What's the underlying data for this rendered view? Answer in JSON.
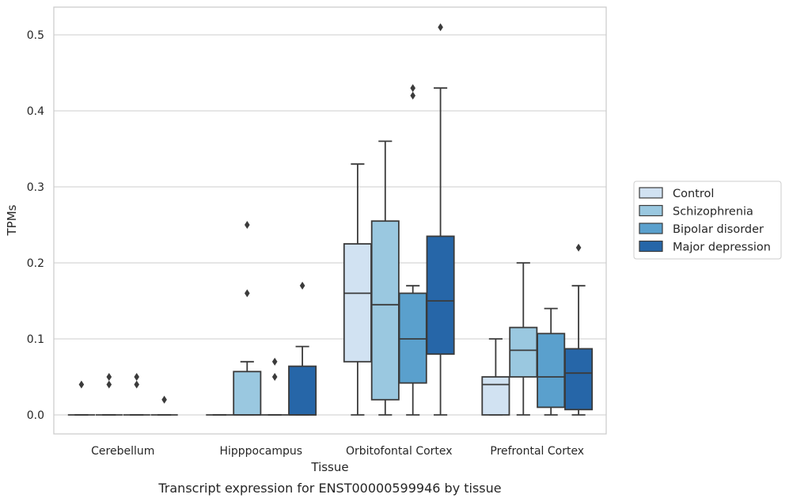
{
  "chart_data": {
    "type": "box",
    "title": "",
    "caption": "Transcript expression for ENST00000599946 by tissue",
    "xlabel": "Tissue",
    "ylabel": "TPMs",
    "ylim": [
      -0.025,
      0.537
    ],
    "yticks": [
      0.0,
      0.1,
      0.2,
      0.3,
      0.4,
      0.5
    ],
    "ytick_labels": [
      "0.0",
      "0.1",
      "0.2",
      "0.3",
      "0.4",
      "0.5"
    ],
    "grid": "horizontal",
    "legend_position": "right",
    "categories": [
      "Cerebellum",
      "Hipppocampus",
      "Orbitofontal Cortex",
      "Prefrontal Cortex"
    ],
    "series": [
      {
        "name": "Control",
        "color": "#d1e2f2",
        "boxes": [
          {
            "min": 0.0,
            "q1": 0.0,
            "median": 0.0,
            "q3": 0.0,
            "max": 0.0,
            "outliers": [
              0.04
            ]
          },
          {
            "min": 0.0,
            "q1": 0.0,
            "median": 0.0,
            "q3": 0.0,
            "max": 0.0,
            "outliers": []
          },
          {
            "min": 0.0,
            "q1": 0.07,
            "median": 0.16,
            "q3": 0.225,
            "max": 0.33,
            "outliers": []
          },
          {
            "min": 0.0,
            "q1": 0.0,
            "median": 0.04,
            "q3": 0.05,
            "max": 0.1,
            "outliers": []
          }
        ]
      },
      {
        "name": "Schizophrenia",
        "color": "#9ac8e0",
        "boxes": [
          {
            "min": 0.0,
            "q1": 0.0,
            "median": 0.0,
            "q3": 0.0,
            "max": 0.0,
            "outliers": [
              0.04,
              0.05
            ]
          },
          {
            "min": 0.0,
            "q1": 0.0,
            "median": 0.0,
            "q3": 0.057,
            "max": 0.07,
            "outliers": [
              0.16,
              0.25
            ]
          },
          {
            "min": 0.0,
            "q1": 0.02,
            "median": 0.145,
            "q3": 0.255,
            "max": 0.36,
            "outliers": []
          },
          {
            "min": 0.0,
            "q1": 0.05,
            "median": 0.085,
            "q3": 0.115,
            "max": 0.2,
            "outliers": []
          }
        ]
      },
      {
        "name": "Bipolar disorder",
        "color": "#5aa0cd",
        "boxes": [
          {
            "min": 0.0,
            "q1": 0.0,
            "median": 0.0,
            "q3": 0.0,
            "max": 0.0,
            "outliers": [
              0.04,
              0.05
            ]
          },
          {
            "min": 0.0,
            "q1": 0.0,
            "median": 0.0,
            "q3": 0.0,
            "max": 0.0,
            "outliers": [
              0.05,
              0.07
            ]
          },
          {
            "min": 0.0,
            "q1": 0.042,
            "median": 0.1,
            "q3": 0.16,
            "max": 0.17,
            "outliers": [
              0.42,
              0.43
            ]
          },
          {
            "min": 0.0,
            "q1": 0.01,
            "median": 0.05,
            "q3": 0.107,
            "max": 0.14,
            "outliers": []
          }
        ]
      },
      {
        "name": "Major depression",
        "color": "#2666a8",
        "boxes": [
          {
            "min": 0.0,
            "q1": 0.0,
            "median": 0.0,
            "q3": 0.0,
            "max": 0.0,
            "outliers": [
              0.02
            ]
          },
          {
            "min": 0.0,
            "q1": 0.0,
            "median": 0.0,
            "q3": 0.064,
            "max": 0.09,
            "outliers": [
              0.17
            ]
          },
          {
            "min": 0.0,
            "q1": 0.08,
            "median": 0.15,
            "q3": 0.235,
            "max": 0.43,
            "outliers": [
              0.51
            ]
          },
          {
            "min": 0.0,
            "q1": 0.007,
            "median": 0.055,
            "q3": 0.087,
            "max": 0.17,
            "outliers": [
              0.22
            ]
          }
        ]
      }
    ]
  }
}
